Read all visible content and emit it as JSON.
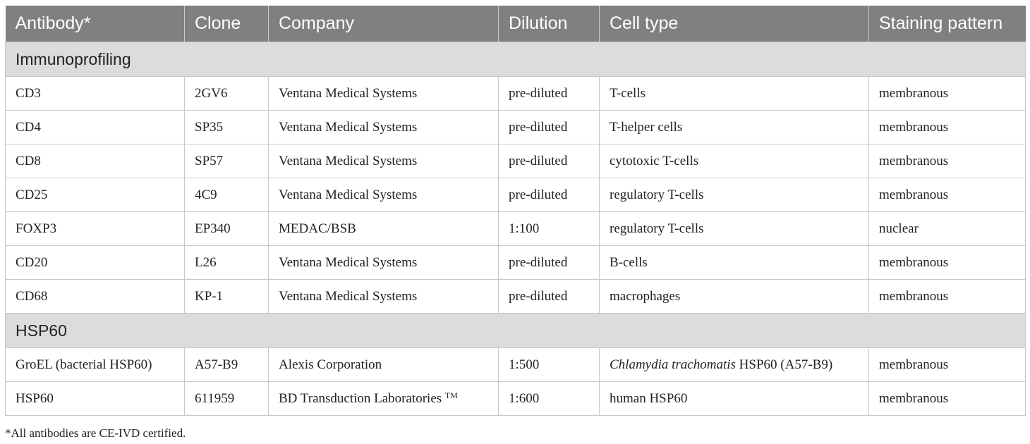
{
  "table": {
    "headers": [
      "Antibody*",
      "Clone",
      "Company",
      "Dilution",
      "Cell type",
      "Staining pattern"
    ],
    "sections": [
      {
        "title": "Immunoprofiling",
        "rows": [
          {
            "antibody": "CD3",
            "clone": "2GV6",
            "company": "Ventana Medical Systems",
            "company_tm": "",
            "dilution": "pre-diluted",
            "cell_type_italic": "",
            "cell_type": "T-cells",
            "staining": "membranous"
          },
          {
            "antibody": "CD4",
            "clone": "SP35",
            "company": "Ventana Medical Systems",
            "company_tm": "",
            "dilution": "pre-diluted",
            "cell_type_italic": "",
            "cell_type": "T-helper cells",
            "staining": "membranous"
          },
          {
            "antibody": "CD8",
            "clone": "SP57",
            "company": "Ventana Medical Systems",
            "company_tm": "",
            "dilution": "pre-diluted",
            "cell_type_italic": "",
            "cell_type": "cytotoxic T-cells",
            "staining": "membranous"
          },
          {
            "antibody": "CD25",
            "clone": "4C9",
            "company": "Ventana Medical Systems",
            "company_tm": "",
            "dilution": "pre-diluted",
            "cell_type_italic": "",
            "cell_type": "regulatory T-cells",
            "staining": "membranous"
          },
          {
            "antibody": "FOXP3",
            "clone": "EP340",
            "company": "MEDAC/BSB",
            "company_tm": "",
            "dilution": "1:100",
            "cell_type_italic": "",
            "cell_type": "regulatory T-cells",
            "staining": "nuclear"
          },
          {
            "antibody": "CD20",
            "clone": "L26",
            "company": "Ventana Medical Systems",
            "company_tm": "",
            "dilution": "pre-diluted",
            "cell_type_italic": "",
            "cell_type": "B-cells",
            "staining": "membranous"
          },
          {
            "antibody": "CD68",
            "clone": "KP-1",
            "company": "Ventana Medical Systems",
            "company_tm": "",
            "dilution": "pre-diluted",
            "cell_type_italic": "",
            "cell_type": "macrophages",
            "staining": "membranous"
          }
        ]
      },
      {
        "title": "HSP60",
        "rows": [
          {
            "antibody": "GroEL (bacterial HSP60)",
            "clone": "A57-B9",
            "company": "Alexis Corporation",
            "company_tm": "",
            "dilution": "1:500",
            "cell_type_italic": "Chlamydia trachomatis",
            "cell_type": " HSP60 (A57-B9)",
            "staining": "membranous"
          },
          {
            "antibody": "HSP60",
            "clone": "611959",
            "company": "BD Transduction Laboratories ",
            "company_tm": "TM",
            "dilution": "1:600",
            "cell_type_italic": "",
            "cell_type": "human HSP60",
            "staining": "membranous"
          }
        ]
      }
    ]
  },
  "footnote": "*All antibodies are CE-IVD certified."
}
